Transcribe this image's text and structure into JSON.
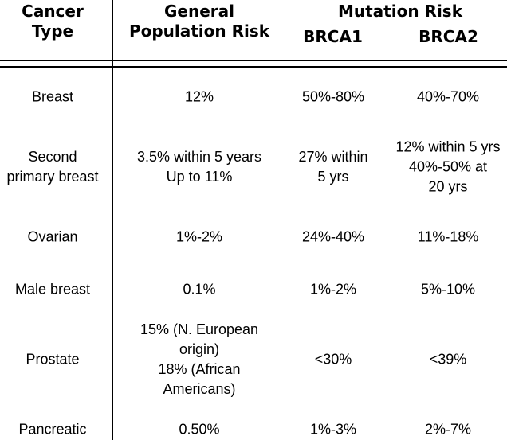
{
  "header": {
    "cancer_type_line1": "Cancer",
    "cancer_type_line2": "Type",
    "general_line1": "General",
    "general_line2": "Population Risk",
    "mutation_risk": "Mutation Risk",
    "brca1": "BRCA1",
    "brca2": "BRCA2"
  },
  "rows": [
    {
      "type": [
        "Breast"
      ],
      "general": [
        "12%"
      ],
      "brca1": [
        "50%-80%"
      ],
      "brca2": [
        "40%-70%"
      ]
    },
    {
      "type": [
        "Second",
        "primary breast"
      ],
      "general": [
        "3.5% within 5 years",
        "Up to 11%"
      ],
      "brca1": [
        "27% within",
        "5 yrs"
      ],
      "brca2": [
        "12% within 5 yrs",
        "40%-50% at",
        "20 yrs"
      ]
    },
    {
      "type": [
        "Ovarian"
      ],
      "general": [
        "1%-2%"
      ],
      "brca1": [
        "24%-40%"
      ],
      "brca2": [
        "11%-18%"
      ]
    },
    {
      "type": [
        "Male breast"
      ],
      "general": [
        "0.1%"
      ],
      "brca1": [
        "1%-2%"
      ],
      "brca2": [
        "5%-10%"
      ]
    },
    {
      "type": [
        "Prostate"
      ],
      "general": [
        "15% (N. European",
        "origin)",
        "18% (African",
        "Americans)"
      ],
      "brca1": [
        "<30%"
      ],
      "brca2": [
        "<39%"
      ]
    },
    {
      "type": [
        "Pancreatic"
      ],
      "general": [
        "0.50%"
      ],
      "brca1": [
        "1%-3%"
      ],
      "brca2": [
        "2%-7%"
      ]
    }
  ]
}
